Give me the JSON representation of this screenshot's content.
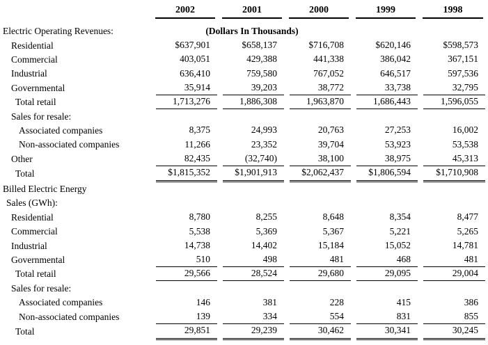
{
  "table": {
    "columns": [
      "2002",
      "2001",
      "2000",
      "1999",
      "1998"
    ],
    "units_note": "(Dollars In Thousands)",
    "rows": [
      {
        "label": "Electric Operating Revenues:",
        "indent": 0,
        "units_row": true
      },
      {
        "label": "Residential",
        "indent": 2,
        "values": [
          "$637,901",
          "$658,137",
          "$716,708",
          "$620,146",
          "$598,573"
        ]
      },
      {
        "label": "Commercial",
        "indent": 2,
        "values": [
          "403,051",
          "429,388",
          "441,338",
          "386,042",
          "367,151"
        ]
      },
      {
        "label": "Industrial",
        "indent": 2,
        "values": [
          "636,410",
          "759,580",
          "767,052",
          "646,517",
          "597,536"
        ]
      },
      {
        "label": "Governmental",
        "indent": 2,
        "values": [
          "35,914",
          "39,203",
          "38,772",
          "33,738",
          "32,795"
        ],
        "rule": "single"
      },
      {
        "label": "Total retail",
        "indent": 3,
        "values": [
          "1,713,276",
          "1,886,308",
          "1,963,870",
          "1,686,443",
          "1,596,055"
        ],
        "rule": "single"
      },
      {
        "label": "Sales for resale:",
        "indent": 2
      },
      {
        "label": "Associated companies",
        "indent": 4,
        "values": [
          "8,375",
          "24,993",
          "20,763",
          "27,253",
          "16,002"
        ]
      },
      {
        "label": "Non-associated companies",
        "indent": 4,
        "values": [
          "11,266",
          "23,352",
          "39,704",
          "53,923",
          "53,538"
        ]
      },
      {
        "label": "Other",
        "indent": 2,
        "values": [
          "82,435",
          "(32,740)",
          "38,100",
          "38,975",
          "45,313"
        ],
        "rule": "single"
      },
      {
        "label": "Total",
        "indent": 3,
        "values": [
          "$1,815,352",
          "$1,901,913",
          "$2,062,437",
          "$1,806,594",
          "$1,710,908"
        ],
        "rule": "double"
      },
      {
        "label": "Billed Electric Energy",
        "indent": 0
      },
      {
        "label": "Sales (GWh):",
        "indent": 1
      },
      {
        "label": "Residential",
        "indent": 2,
        "values": [
          "8,780",
          "8,255",
          "8,648",
          "8,354",
          "8,477"
        ]
      },
      {
        "label": "Commercial",
        "indent": 2,
        "values": [
          "5,538",
          "5,369",
          "5,367",
          "5,221",
          "5,265"
        ]
      },
      {
        "label": "Industrial",
        "indent": 2,
        "values": [
          "14,738",
          "14,402",
          "15,184",
          "15,052",
          "14,781"
        ]
      },
      {
        "label": "Governmental",
        "indent": 2,
        "values": [
          "510",
          "498",
          "481",
          "468",
          "481"
        ],
        "rule": "single"
      },
      {
        "label": "Total retail",
        "indent": 3,
        "values": [
          "29,566",
          "28,524",
          "29,680",
          "29,095",
          "29,004"
        ],
        "rule": "single"
      },
      {
        "label": "Sales for resale:",
        "indent": 2
      },
      {
        "label": "Associated companies",
        "indent": 4,
        "values": [
          "146",
          "381",
          "228",
          "415",
          "386"
        ]
      },
      {
        "label": "Non-associated companies",
        "indent": 4,
        "values": [
          "139",
          "334",
          "554",
          "831",
          "855"
        ],
        "rule": "single"
      },
      {
        "label": "Total",
        "indent": 3,
        "values": [
          "29,851",
          "29,239",
          "30,462",
          "30,341",
          "30,245"
        ],
        "rule": "double"
      }
    ]
  }
}
